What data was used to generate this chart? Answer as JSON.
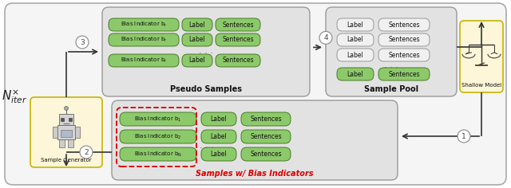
{
  "fig_width": 6.4,
  "fig_height": 2.36,
  "bg_color": "#ffffff",
  "box_yellow": "#fdf6d8",
  "box_yellow_edge": "#c8b400",
  "pill_green": "#8cc96a",
  "pill_green_edge": "#4a7a28",
  "pill_white_fc": "#f0f0f0",
  "pill_white_ec": "#999999",
  "dashed_red": "#dd0000",
  "gray_box_fc": "#e2e2e2",
  "gray_box_ec": "#999999",
  "outer_fc": "#f5f5f5",
  "outer_ec": "#aaaaaa",
  "arrow_color": "#333333",
  "pseudo_title": "Pseudo Samples",
  "pool_title": "Sample Pool",
  "bias_title": "Samples w/ Bias Indicators",
  "gen_label": "Sample Generator",
  "model_label": "Shallow Model"
}
